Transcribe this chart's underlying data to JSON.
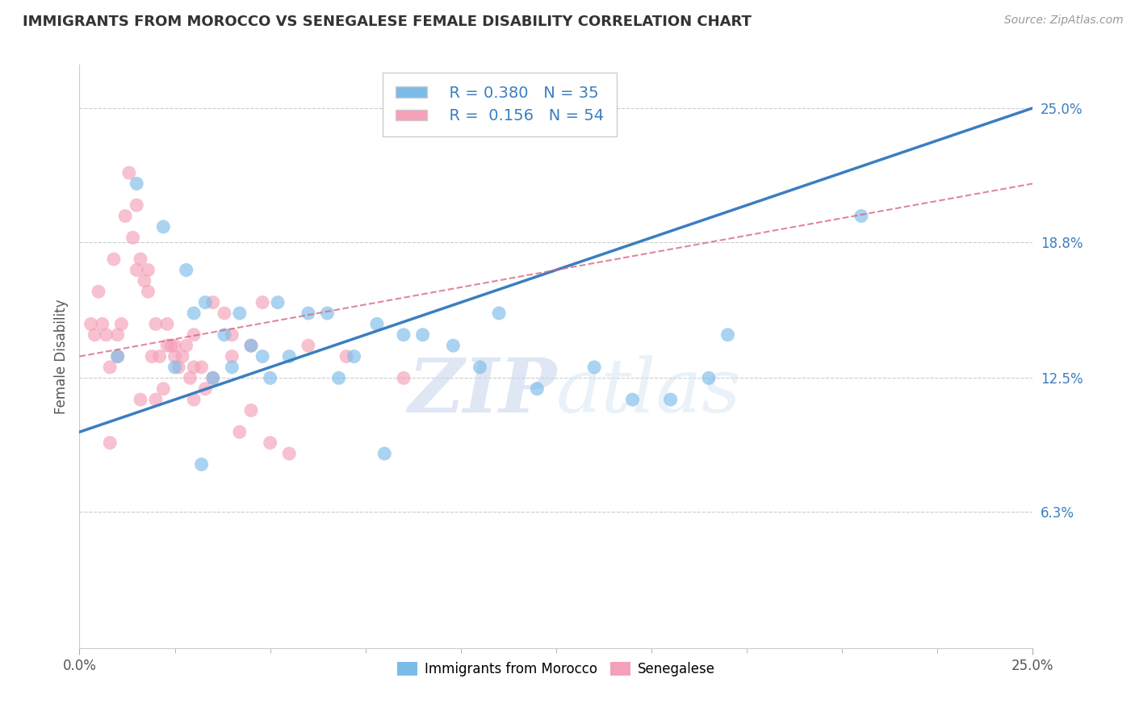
{
  "title": "IMMIGRANTS FROM MOROCCO VS SENEGALESE FEMALE DISABILITY CORRELATION CHART",
  "source": "Source: ZipAtlas.com",
  "ylabel": "Female Disability",
  "xlim": [
    0.0,
    25.0
  ],
  "ylim": [
    0.0,
    27.0
  ],
  "yticks": [
    6.3,
    12.5,
    18.8,
    25.0
  ],
  "legend1_R": "0.380",
  "legend1_N": "35",
  "legend2_R": "0.156",
  "legend2_N": "54",
  "blue_color": "#7bbce8",
  "pink_color": "#f4a0b8",
  "blue_line_color": "#3b7ec0",
  "pink_line_color": "#d46080",
  "watermark_zip": "ZIP",
  "watermark_atlas": "atlas",
  "blue_line_x0": 0.0,
  "blue_line_y0": 10.0,
  "blue_line_x1": 25.0,
  "blue_line_y1": 25.0,
  "pink_line_x0": 0.0,
  "pink_line_y0": 13.5,
  "pink_line_x1": 25.0,
  "pink_line_y1": 21.5,
  "blue_scatter_x": [
    1.5,
    2.2,
    2.8,
    3.0,
    3.3,
    3.8,
    4.2,
    4.5,
    4.8,
    5.2,
    5.5,
    6.0,
    6.5,
    7.2,
    7.8,
    8.5,
    9.0,
    9.8,
    10.5,
    11.0,
    12.0,
    13.5,
    14.5,
    15.5,
    17.0,
    20.5,
    1.0,
    2.5,
    3.5,
    4.0,
    5.0,
    6.8,
    8.0,
    16.5,
    3.2
  ],
  "blue_scatter_y": [
    21.5,
    19.5,
    17.5,
    15.5,
    16.0,
    14.5,
    15.5,
    14.0,
    13.5,
    16.0,
    13.5,
    15.5,
    15.5,
    13.5,
    15.0,
    14.5,
    14.5,
    14.0,
    13.0,
    15.5,
    12.0,
    13.0,
    11.5,
    11.5,
    14.5,
    20.0,
    13.5,
    13.0,
    12.5,
    13.0,
    12.5,
    12.5,
    9.0,
    12.5,
    8.5
  ],
  "pink_scatter_x": [
    0.3,
    0.4,
    0.5,
    0.6,
    0.7,
    0.8,
    0.9,
    1.0,
    1.0,
    1.1,
    1.2,
    1.3,
    1.4,
    1.5,
    1.5,
    1.6,
    1.7,
    1.8,
    1.8,
    1.9,
    2.0,
    2.1,
    2.2,
    2.3,
    2.3,
    2.4,
    2.5,
    2.5,
    2.6,
    2.7,
    2.8,
    3.0,
    3.0,
    3.2,
    3.3,
    3.5,
    3.5,
    3.8,
    4.0,
    4.0,
    4.2,
    4.5,
    4.8,
    5.0,
    5.5,
    6.0,
    7.0,
    8.5,
    2.9,
    1.6,
    0.8,
    2.0,
    3.0,
    4.5
  ],
  "pink_scatter_y": [
    15.0,
    14.5,
    16.5,
    15.0,
    14.5,
    13.0,
    18.0,
    13.5,
    14.5,
    15.0,
    20.0,
    22.0,
    19.0,
    20.5,
    17.5,
    18.0,
    17.0,
    17.5,
    16.5,
    13.5,
    15.0,
    13.5,
    12.0,
    15.0,
    14.0,
    14.0,
    14.0,
    13.5,
    13.0,
    13.5,
    14.0,
    14.5,
    13.0,
    13.0,
    12.0,
    12.5,
    16.0,
    15.5,
    13.5,
    14.5,
    10.0,
    14.0,
    16.0,
    9.5,
    9.0,
    14.0,
    13.5,
    12.5,
    12.5,
    11.5,
    9.5,
    11.5,
    11.5,
    11.0
  ]
}
